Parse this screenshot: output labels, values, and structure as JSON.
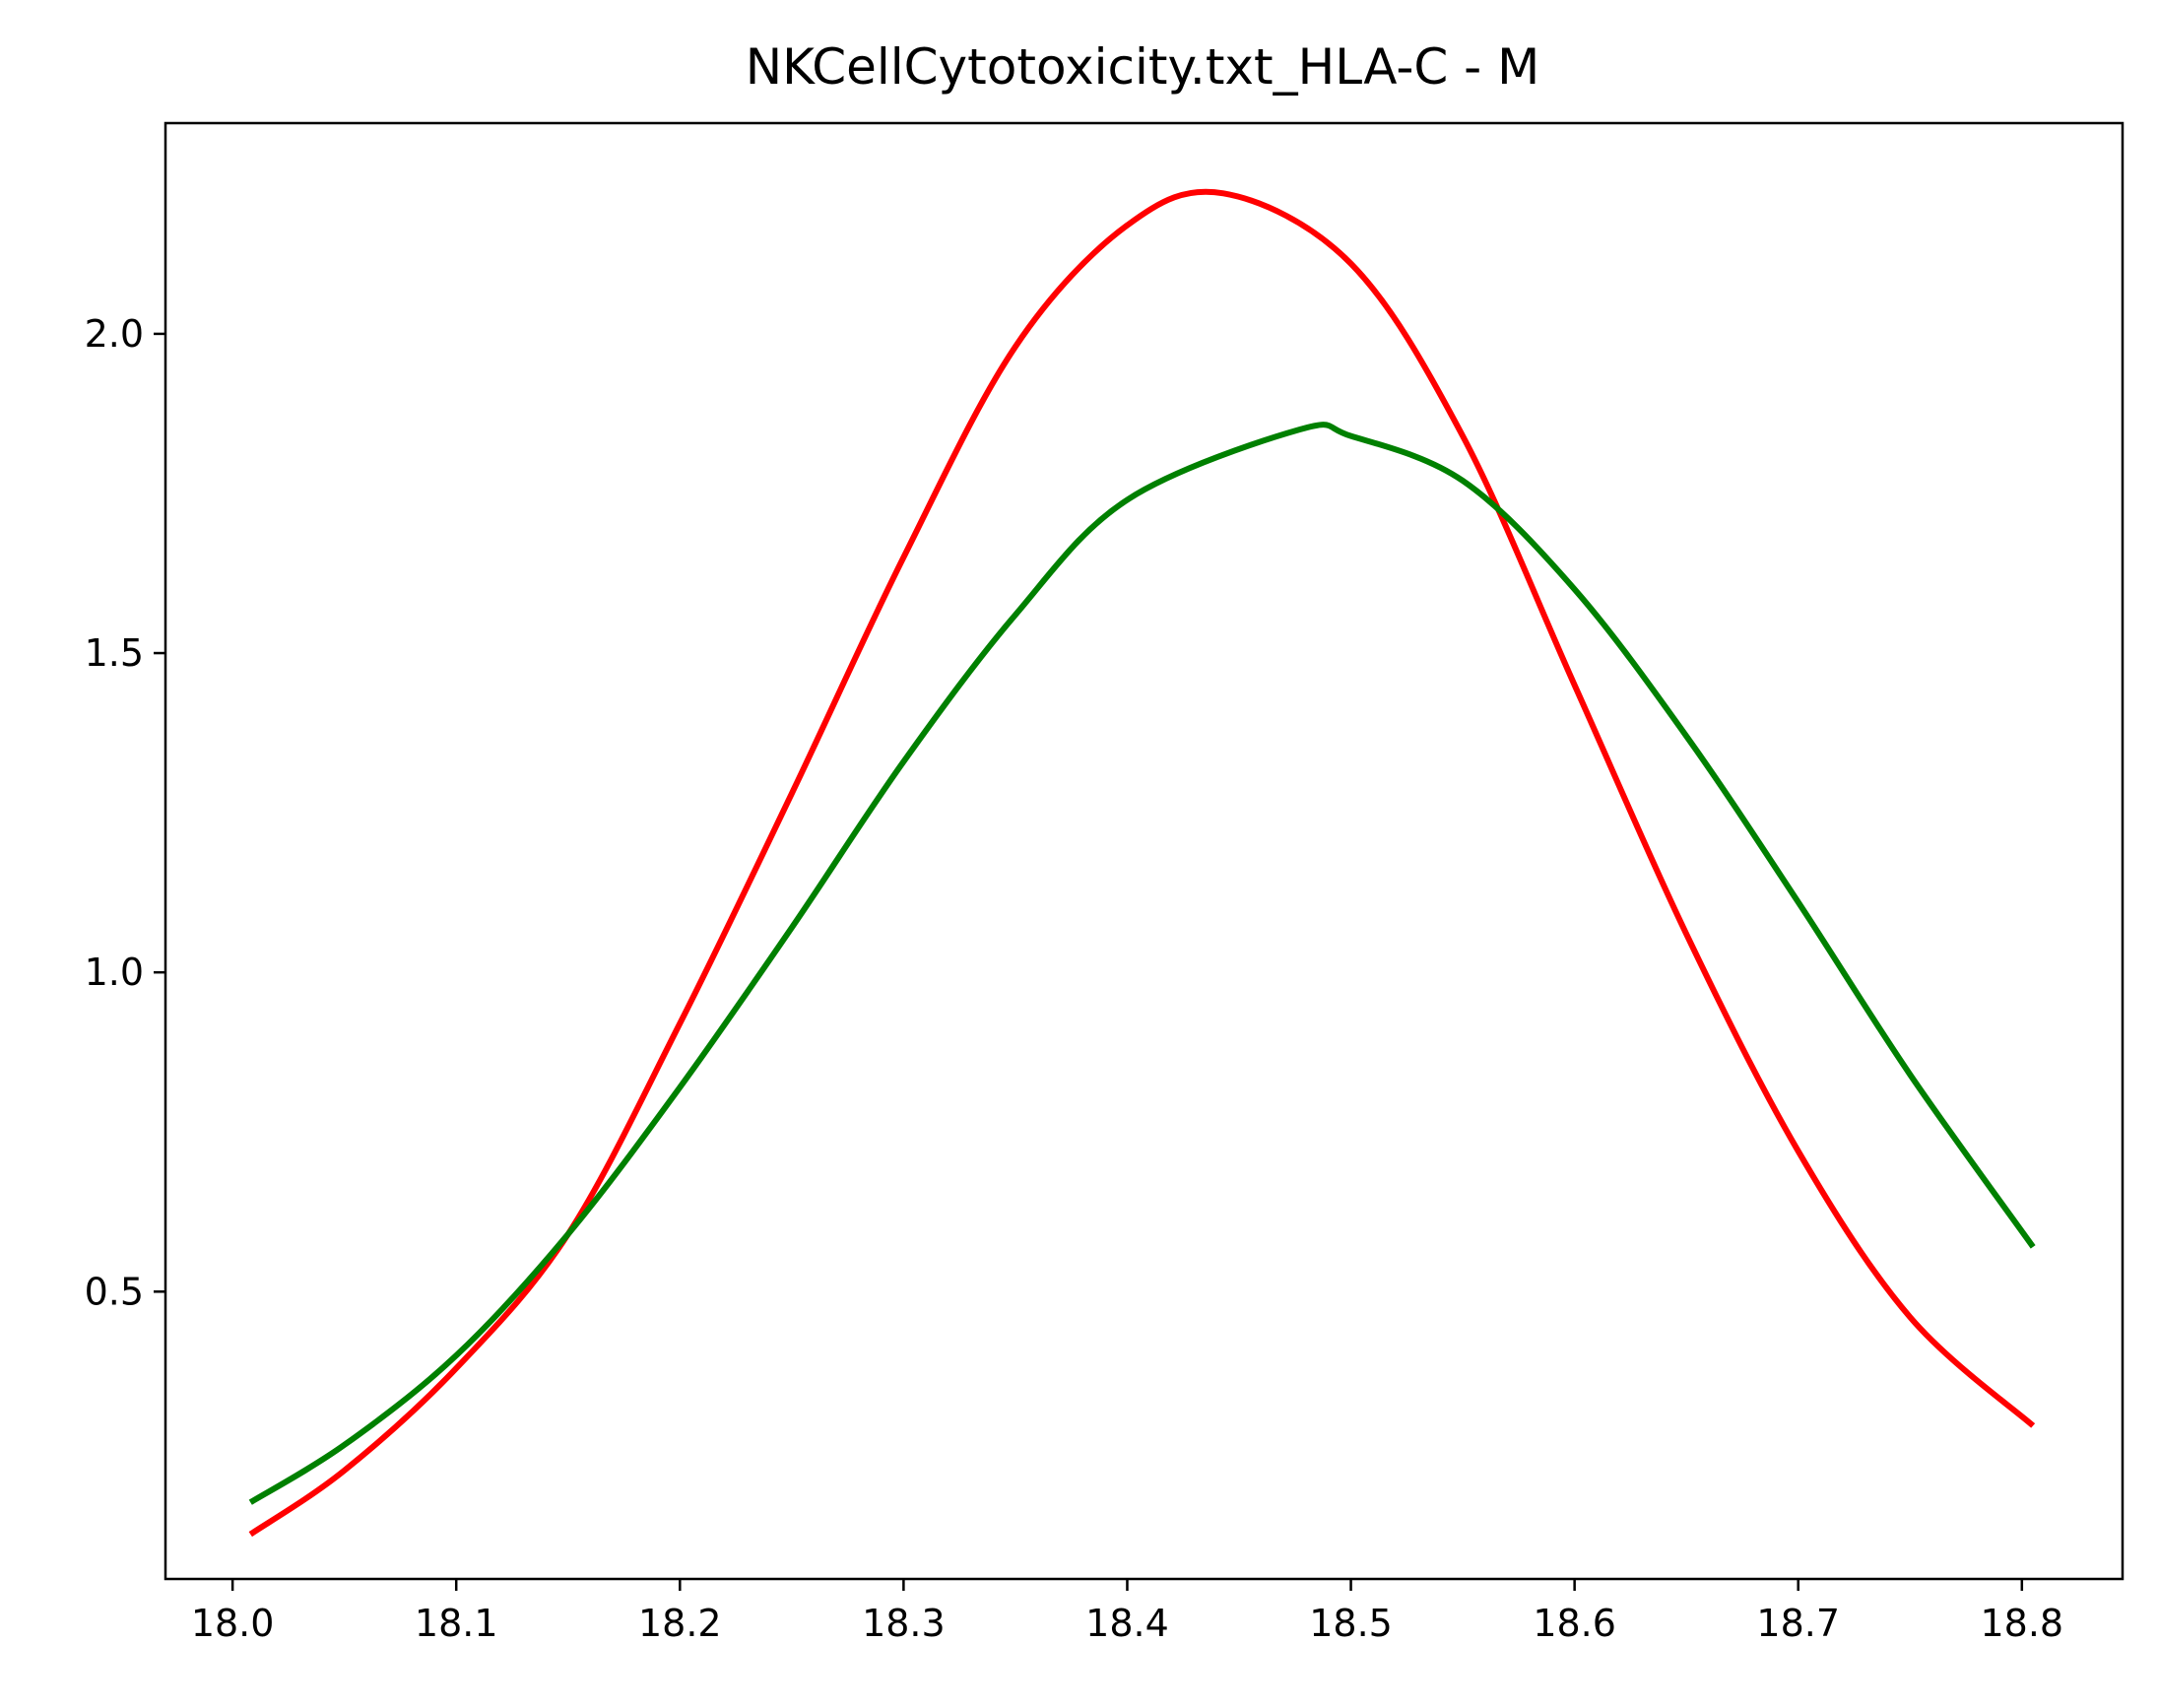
{
  "chart_data": {
    "type": "line",
    "title": "NKCellCytotoxicity.txt_HLA-C - M",
    "xlabel": "",
    "ylabel": "",
    "xlim": [
      17.97,
      18.845
    ],
    "ylim": [
      0.05,
      2.33
    ],
    "x_ticks": [
      18.0,
      18.1,
      18.2,
      18.3,
      18.4,
      18.5,
      18.6,
      18.7,
      18.8
    ],
    "x_tick_labels": [
      "18.0",
      "18.1",
      "18.2",
      "18.3",
      "18.4",
      "18.5",
      "18.6",
      "18.7",
      "18.8"
    ],
    "y_ticks": [
      0.5,
      1.0,
      1.5,
      2.0
    ],
    "y_tick_labels": [
      "0.5",
      "1.0",
      "1.5",
      "2.0"
    ],
    "grid": false,
    "series": [
      {
        "color": "#ff0000",
        "x": [
          18.008,
          18.05,
          18.1,
          18.15,
          18.2,
          18.25,
          18.3,
          18.35,
          18.4,
          18.443,
          18.5,
          18.55,
          18.6,
          18.65,
          18.7,
          18.75,
          18.805
        ],
        "y": [
          0.12,
          0.22,
          0.38,
          0.59,
          0.92,
          1.28,
          1.65,
          1.98,
          2.17,
          2.22,
          2.11,
          1.84,
          1.45,
          1.06,
          0.72,
          0.46,
          0.29
        ]
      },
      {
        "color": "#008000",
        "x": [
          18.008,
          18.05,
          18.1,
          18.15,
          18.2,
          18.25,
          18.3,
          18.35,
          18.4,
          18.477,
          18.5,
          18.55,
          18.6,
          18.65,
          18.7,
          18.75,
          18.805
        ],
        "y": [
          0.17,
          0.26,
          0.4,
          0.59,
          0.82,
          1.07,
          1.33,
          1.56,
          1.74,
          1.85,
          1.84,
          1.77,
          1.6,
          1.37,
          1.11,
          0.84,
          0.57
        ]
      }
    ]
  }
}
